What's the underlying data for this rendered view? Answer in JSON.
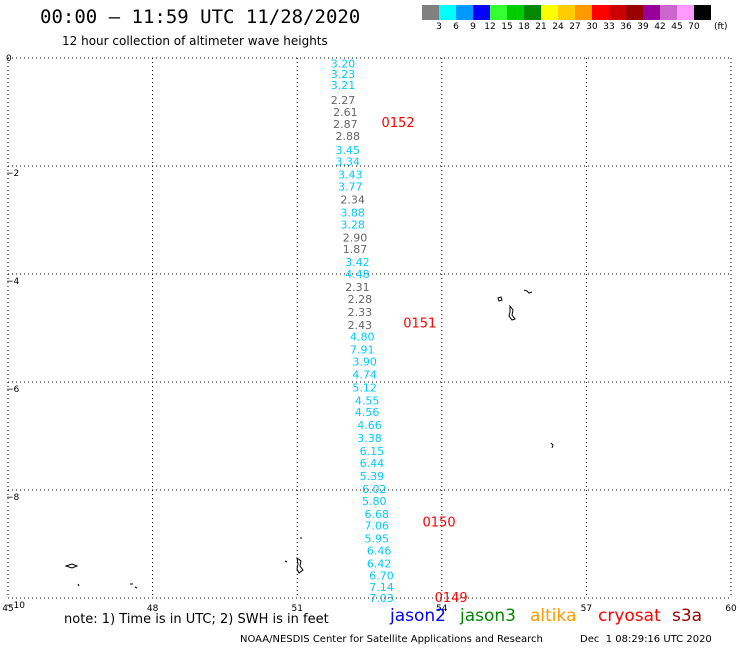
{
  "title": "00:00 – 11:59 UTC 11/28/2020",
  "subtitle": "12 hour collection of altimeter wave heights",
  "colorbar": {
    "colors": [
      "#808080",
      "#00ffff",
      "#0099ff",
      "#0000ff",
      "#33ff33",
      "#00cc00",
      "#008800",
      "#ffff00",
      "#ffcc00",
      "#ff9900",
      "#ff0000",
      "#cc0000",
      "#990000",
      "#990099",
      "#cc66cc",
      "#ff99ff",
      "#000000"
    ],
    "tick_labels": [
      "3",
      "6",
      "9",
      "12",
      "15",
      "18",
      "21",
      "24",
      "27",
      "30",
      "33",
      "36",
      "39",
      "42",
      "45",
      "70"
    ],
    "unit": "(ft)"
  },
  "map": {
    "lon_range": [
      45,
      60
    ],
    "lat_range": [
      -10,
      0
    ],
    "x_ticks": [
      "45",
      "48",
      "51",
      "54",
      "57",
      "60"
    ],
    "y_ticks": [
      "0",
      "−2",
      "−4",
      "−6",
      "−8",
      "−10"
    ],
    "grid": "dotted"
  },
  "satellite_colors": {
    "jason2": "#0000ff",
    "jason3": "#008800",
    "altika": "#ff9900",
    "cryosat": "#ff0000",
    "s3a": "#990000",
    "gray": "#666666",
    "cyan": "#00ccff"
  },
  "tracks": [
    {
      "label": "0152",
      "label_lat": -1.2,
      "label_lon": 52.75
    },
    {
      "label": "0151",
      "label_lat": -4.92,
      "label_lon": 53.2
    },
    {
      "label": "0150",
      "label_lat": -8.6,
      "label_lon": 53.6
    },
    {
      "label": "0149",
      "label_lat": -10.0,
      "label_lon": 53.85
    }
  ],
  "observations": [
    {
      "lat": -0.1,
      "lon": 51.95,
      "v": "3.20",
      "c": "cyan"
    },
    {
      "lat": -0.3,
      "lon": 51.95,
      "v": "3.23",
      "c": "cyan"
    },
    {
      "lat": -0.5,
      "lon": 51.95,
      "v": "3.21",
      "c": "cyan"
    },
    {
      "lat": -0.78,
      "lon": 51.95,
      "v": "2.27",
      "c": "gray"
    },
    {
      "lat": -1.0,
      "lon": 52.0,
      "v": "2.61",
      "c": "gray"
    },
    {
      "lat": -1.22,
      "lon": 52.0,
      "v": "2.87",
      "c": "gray"
    },
    {
      "lat": -1.44,
      "lon": 52.05,
      "v": "2.88",
      "c": "gray"
    },
    {
      "lat": -1.7,
      "lon": 52.05,
      "v": "3.45",
      "c": "cyan"
    },
    {
      "lat": -1.92,
      "lon": 52.05,
      "v": "3.34",
      "c": "cyan"
    },
    {
      "lat": -2.16,
      "lon": 52.1,
      "v": "3.43",
      "c": "cyan"
    },
    {
      "lat": -2.38,
      "lon": 52.1,
      "v": "3.77",
      "c": "cyan"
    },
    {
      "lat": -2.62,
      "lon": 52.15,
      "v": "2.34",
      "c": "gray"
    },
    {
      "lat": -2.86,
      "lon": 52.15,
      "v": "3.88",
      "c": "cyan"
    },
    {
      "lat": -3.08,
      "lon": 52.15,
      "v": "3.28",
      "c": "cyan"
    },
    {
      "lat": -3.32,
      "lon": 52.2,
      "v": "2.90",
      "c": "gray"
    },
    {
      "lat": -3.54,
      "lon": 52.2,
      "v": "1.87",
      "c": "gray"
    },
    {
      "lat": -3.78,
      "lon": 52.25,
      "v": "3.42",
      "c": "cyan"
    },
    {
      "lat": -4.0,
      "lon": 52.25,
      "v": "4.48",
      "c": "cyan"
    },
    {
      "lat": -4.24,
      "lon": 52.25,
      "v": "2.31",
      "c": "gray"
    },
    {
      "lat": -4.46,
      "lon": 52.3,
      "v": "2.28",
      "c": "gray"
    },
    {
      "lat": -4.7,
      "lon": 52.3,
      "v": "2.33",
      "c": "gray"
    },
    {
      "lat": -4.94,
      "lon": 52.3,
      "v": "2.43",
      "c": "gray"
    },
    {
      "lat": -5.16,
      "lon": 52.35,
      "v": "4.80",
      "c": "cyan"
    },
    {
      "lat": -5.4,
      "lon": 52.35,
      "v": "7.91",
      "c": "cyan"
    },
    {
      "lat": -5.62,
      "lon": 52.4,
      "v": "3.90",
      "c": "cyan"
    },
    {
      "lat": -5.86,
      "lon": 52.4,
      "v": "4.74",
      "c": "cyan"
    },
    {
      "lat": -6.1,
      "lon": 52.4,
      "v": "5.12",
      "c": "cyan"
    },
    {
      "lat": -6.34,
      "lon": 52.45,
      "v": "4.55",
      "c": "cyan"
    },
    {
      "lat": -6.56,
      "lon": 52.45,
      "v": "4.56",
      "c": "cyan"
    },
    {
      "lat": -6.8,
      "lon": 52.5,
      "v": "4.66",
      "c": "cyan"
    },
    {
      "lat": -7.04,
      "lon": 52.5,
      "v": "3.38",
      "c": "cyan"
    },
    {
      "lat": -7.28,
      "lon": 52.55,
      "v": "6.15",
      "c": "cyan"
    },
    {
      "lat": -7.5,
      "lon": 52.55,
      "v": "6.44",
      "c": "cyan"
    },
    {
      "lat": -7.74,
      "lon": 52.55,
      "v": "5.39",
      "c": "cyan"
    },
    {
      "lat": -7.98,
      "lon": 52.6,
      "v": "6.02",
      "c": "cyan"
    },
    {
      "lat": -8.2,
      "lon": 52.6,
      "v": "5.80",
      "c": "cyan"
    },
    {
      "lat": -8.44,
      "lon": 52.65,
      "v": "6.68",
      "c": "cyan"
    },
    {
      "lat": -8.66,
      "lon": 52.65,
      "v": "7.06",
      "c": "cyan"
    },
    {
      "lat": -8.9,
      "lon": 52.65,
      "v": "5.95",
      "c": "cyan"
    },
    {
      "lat": -9.12,
      "lon": 52.7,
      "v": "6.46",
      "c": "cyan"
    },
    {
      "lat": -9.36,
      "lon": 52.7,
      "v": "6.42",
      "c": "cyan"
    },
    {
      "lat": -9.58,
      "lon": 52.75,
      "v": "6.70",
      "c": "cyan"
    },
    {
      "lat": -9.8,
      "lon": 52.75,
      "v": "7.14",
      "c": "cyan"
    },
    {
      "lat": -10.0,
      "lon": 52.75,
      "v": "7.03",
      "c": "cyan"
    }
  ],
  "note": "note: 1) Time is in UTC; 2) SWH is in feet",
  "legend": [
    {
      "name": "jason2",
      "color": "#0000ff"
    },
    {
      "name": "jason3",
      "color": "#008800"
    },
    {
      "name": "altika",
      "color": "#ff9900"
    },
    {
      "name": "cryosat",
      "color": "#ff0000"
    },
    {
      "name": "s3a",
      "color": "#990000"
    }
  ],
  "footer": "NOAA/NESDIS Center for Satellite Applications and Research",
  "footer_time": "Dec  1 08:29:16 UTC 2020"
}
